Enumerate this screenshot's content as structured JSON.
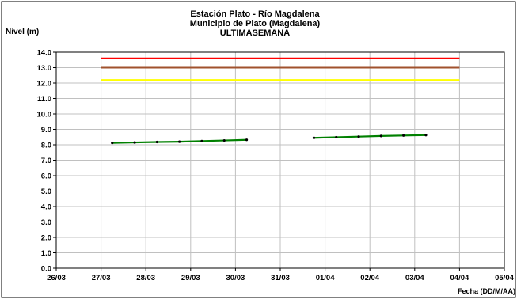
{
  "chart_data": {
    "type": "line",
    "title_lines": [
      "Estación Plato - Río Magdalena",
      "Municipio de Plato (Magdalena)",
      "ULTIMASEMANA"
    ],
    "ylabel": "Nivel (m)",
    "xlabel": "Fecha (DD/M/AA)",
    "ylim": [
      0,
      14
    ],
    "y_ticks": [
      0.0,
      1.0,
      2.0,
      3.0,
      4.0,
      5.0,
      6.0,
      7.0,
      8.0,
      9.0,
      10.0,
      11.0,
      12.0,
      13.0,
      14.0
    ],
    "y_tick_labels": [
      "0.0",
      "1.0",
      "2.0",
      "3.0",
      "4.0",
      "5.0",
      "6.0",
      "7.0",
      "8.0",
      "9.0",
      "10.0",
      "11.0",
      "12.0",
      "13.0",
      "14.0"
    ],
    "x_tick_labels": [
      "26/03",
      "27/03",
      "28/03",
      "29/03",
      "30/03",
      "31/03",
      "01/04",
      "02/04",
      "03/04",
      "04/04",
      "05/04"
    ],
    "xlim_days": [
      0,
      10
    ],
    "grid": true,
    "threshold_lines": [
      {
        "level": 13.6,
        "color": "#ff0000",
        "x_range_days": [
          1,
          9
        ]
      },
      {
        "level": 13.0,
        "color": "#a0522d",
        "x_range_days": [
          1,
          9
        ]
      },
      {
        "level": 12.2,
        "color": "#ffff00",
        "x_range_days": [
          1,
          9
        ]
      }
    ],
    "series": [
      {
        "color": "#008000",
        "segments": [
          [
            {
              "x": 1.25,
              "y": 8.12
            },
            {
              "x": 1.75,
              "y": 8.15
            },
            {
              "x": 2.25,
              "y": 8.18
            },
            {
              "x": 2.75,
              "y": 8.2
            },
            {
              "x": 3.25,
              "y": 8.24
            },
            {
              "x": 3.75,
              "y": 8.28
            },
            {
              "x": 4.25,
              "y": 8.32
            }
          ],
          [
            {
              "x": 5.75,
              "y": 8.45
            },
            {
              "x": 6.25,
              "y": 8.49
            },
            {
              "x": 6.75,
              "y": 8.53
            },
            {
              "x": 7.25,
              "y": 8.57
            },
            {
              "x": 7.75,
              "y": 8.6
            },
            {
              "x": 8.25,
              "y": 8.63
            }
          ]
        ]
      }
    ]
  }
}
